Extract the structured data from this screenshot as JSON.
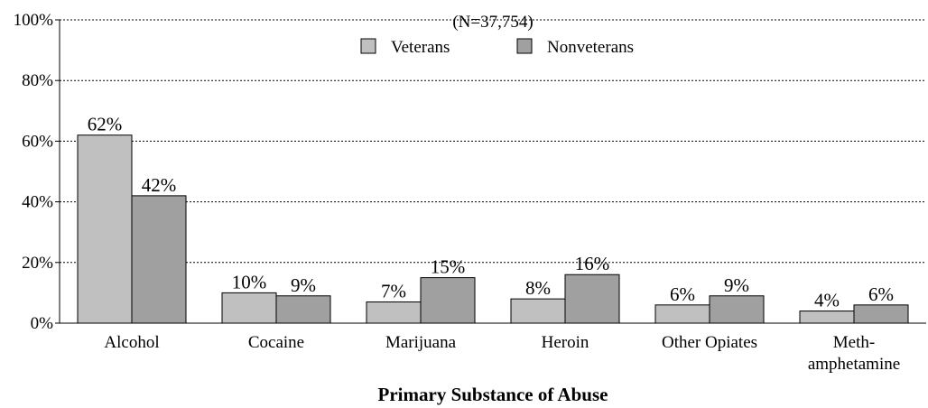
{
  "chart_data": {
    "type": "bar",
    "title": "(N=37,754)",
    "xlabel": "Primary Substance of Abuse",
    "ylabel": "",
    "ylim": [
      0,
      100
    ],
    "y_ticks": [
      "0%",
      "20%",
      "40%",
      "60%",
      "80%",
      "100%"
    ],
    "categories": [
      [
        "Alcohol"
      ],
      [
        "Cocaine"
      ],
      [
        "Marijuana"
      ],
      [
        "Heroin"
      ],
      [
        "Other Opiates"
      ],
      [
        "Meth-",
        "amphetamine"
      ]
    ],
    "series": [
      {
        "name": "Veterans",
        "color": "#c0c0c0",
        "values": [
          62,
          10,
          7,
          8,
          6,
          4
        ],
        "labels": [
          "62%",
          "10%",
          "7%",
          "8%",
          "6%",
          "4%"
        ]
      },
      {
        "name": "Nonveterans",
        "color": "#a0a0a0",
        "values": [
          42,
          9,
          15,
          16,
          9,
          6
        ],
        "labels": [
          "42%",
          "9%",
          "15%",
          "16%",
          "9%",
          "6%"
        ]
      }
    ],
    "grid": true,
    "legend_position": "top-center"
  }
}
